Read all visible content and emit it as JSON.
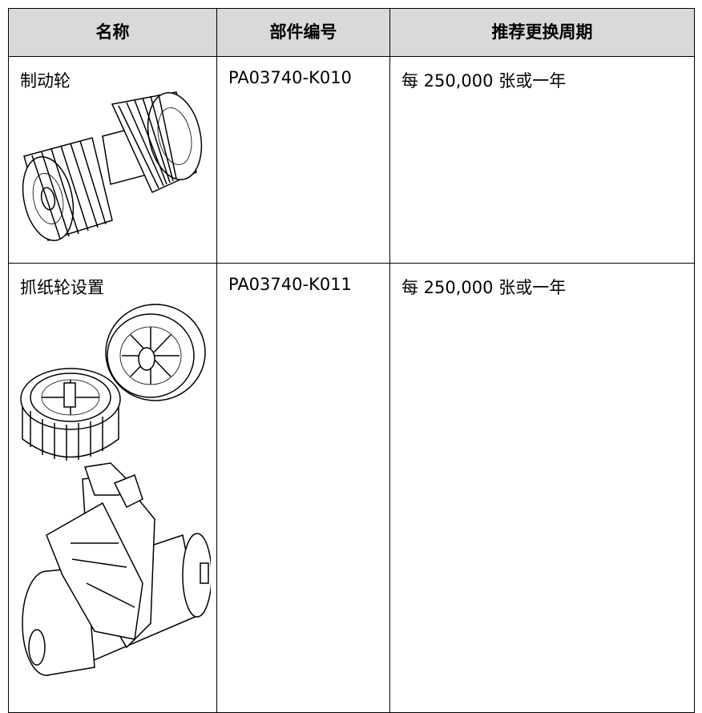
{
  "table": {
    "header": [
      "名称",
      "部件编号",
      "推荐更换周期"
    ],
    "rows": [
      [
        "制动轮",
        "PA03740-K010",
        "每 250,000 张或一年"
      ],
      [
        "抓纸轮设置",
        "PA03740-K011",
        "每 250,000 张或一年"
      ]
    ]
  }
}
